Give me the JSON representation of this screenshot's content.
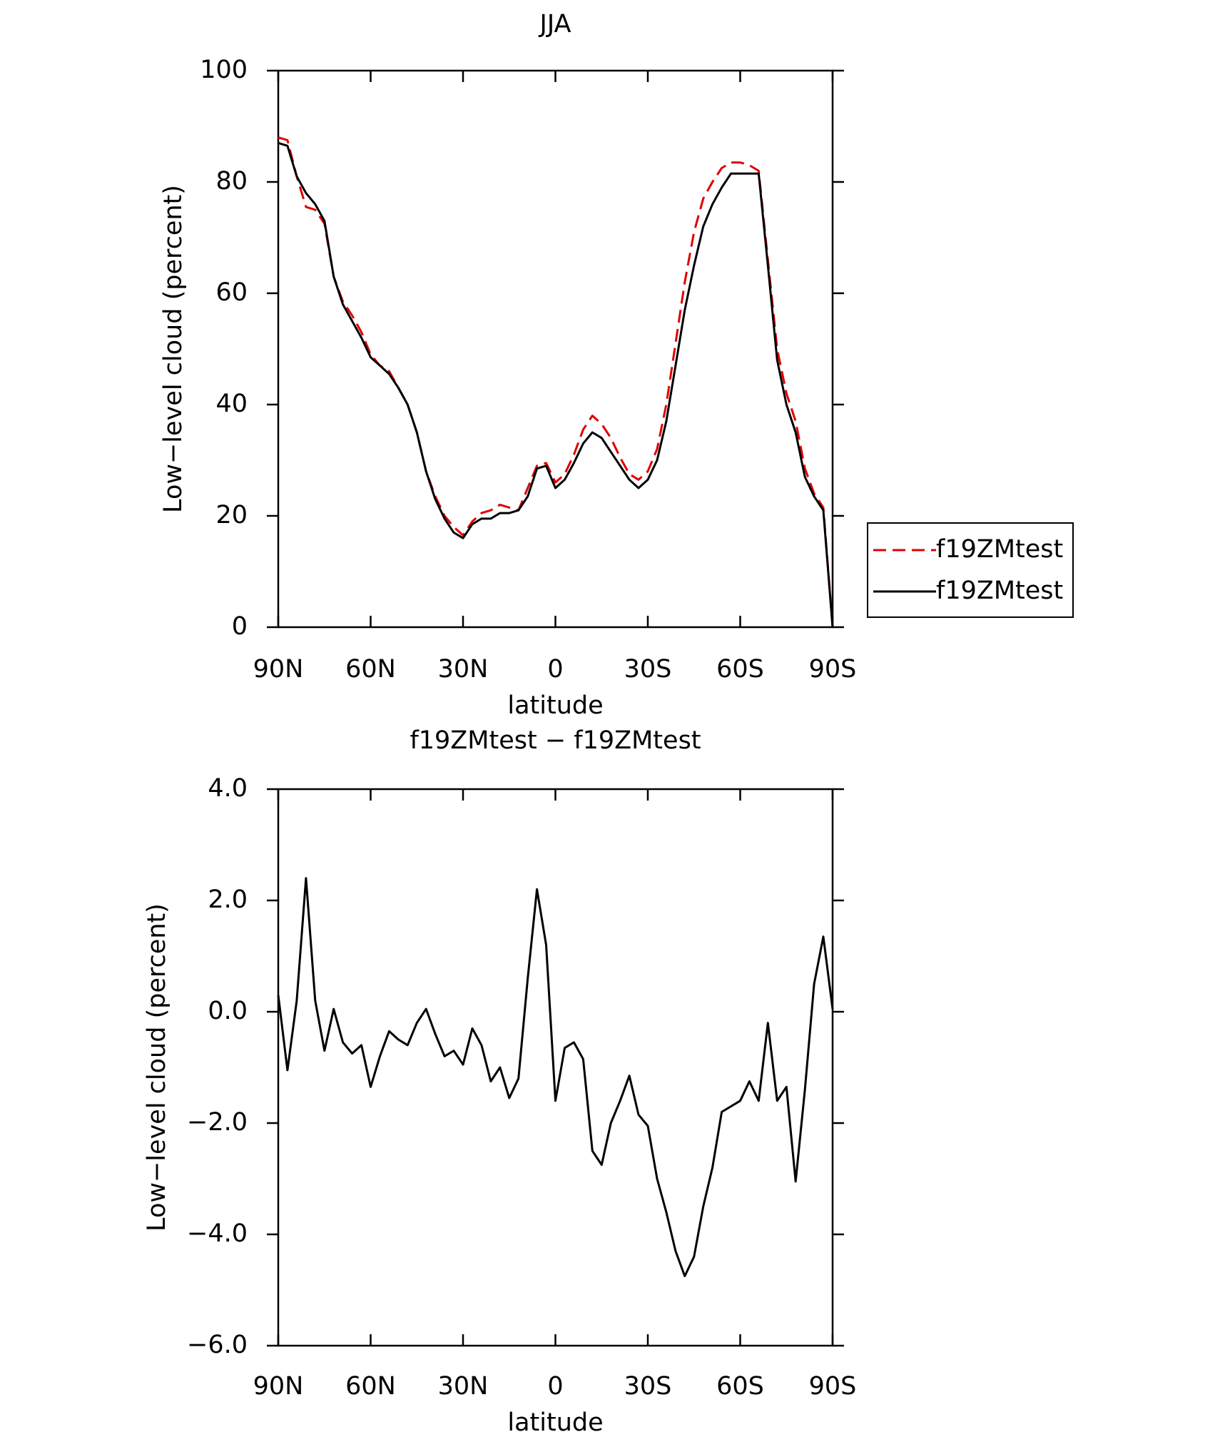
{
  "chart_data": [
    {
      "type": "line",
      "title": "JJA",
      "xlabel": "latitude",
      "ylabel": "Low−level cloud (percent)",
      "x": [
        90,
        87,
        84,
        81,
        78,
        75,
        72,
        69,
        66,
        63,
        60,
        57,
        54,
        51,
        48,
        45,
        42,
        39,
        36,
        33,
        30,
        27,
        24,
        21,
        18,
        15,
        12,
        9,
        6,
        3,
        0,
        -3,
        -6,
        -9,
        -12,
        -15,
        -18,
        -21,
        -24,
        -27,
        -30,
        -33,
        -36,
        -39,
        -42,
        -45,
        -48,
        -51,
        -54,
        -57,
        -60,
        -63,
        -66,
        -69,
        -72,
        -75,
        -78,
        -81,
        -84,
        -87,
        -90
      ],
      "series": [
        {
          "name": "f19ZMtest",
          "color": "#e00000",
          "dash": true,
          "values": [
            88,
            87.5,
            81,
            75.5,
            75,
            72.5,
            63,
            58.5,
            56,
            53,
            49,
            47,
            46,
            43,
            40,
            35,
            28,
            23.5,
            20,
            18,
            16.5,
            19,
            20.5,
            21,
            22,
            21.5,
            21,
            25,
            29,
            29.5,
            26,
            27.5,
            31,
            35.5,
            38,
            36.5,
            34,
            30.5,
            27.5,
            26.5,
            28,
            32,
            40,
            51,
            62,
            71,
            77,
            80,
            82.5,
            83.5,
            83.5,
            83,
            82,
            66,
            50,
            42,
            37,
            28.5,
            24,
            21.5,
            0
          ]
        },
        {
          "name": "f19ZMtest",
          "color": "#000000",
          "dash": false,
          "values": [
            87,
            86.5,
            81,
            78,
            76,
            73,
            63,
            58,
            55,
            52,
            48.5,
            47,
            45.5,
            43,
            40,
            35,
            28,
            23,
            19.5,
            17,
            16,
            18.5,
            19.5,
            19.5,
            20.5,
            20.5,
            21,
            23.5,
            28.5,
            29,
            25,
            26.5,
            29.5,
            33,
            35,
            34,
            31.5,
            29,
            26.5,
            25,
            26.5,
            30,
            37,
            47,
            57,
            65,
            72,
            76,
            79,
            81.5,
            81.5,
            81.5,
            81.5,
            65,
            48,
            40,
            35,
            27,
            23.5,
            21,
            0
          ]
        }
      ],
      "xlim": [
        90,
        -90
      ],
      "xticks": [
        {
          "value": 90,
          "label": "90N"
        },
        {
          "value": 60,
          "label": "60N"
        },
        {
          "value": 30,
          "label": "30N"
        },
        0,
        {
          "value": -30,
          "label": "30S"
        },
        {
          "value": -60,
          "label": "60S"
        },
        {
          "value": -90,
          "label": "90S"
        }
      ],
      "ylim": [
        0,
        100
      ],
      "yticks": [
        0,
        20,
        40,
        60,
        80,
        100
      ],
      "legend": "right"
    },
    {
      "type": "line",
      "title": "f19ZMtest − f19ZMtest",
      "xlabel": "latitude",
      "ylabel": "Low−level cloud (percent)",
      "x": [
        90,
        87,
        84,
        81,
        78,
        75,
        72,
        69,
        66,
        63,
        60,
        57,
        54,
        51,
        48,
        45,
        42,
        39,
        36,
        33,
        30,
        27,
        24,
        21,
        18,
        15,
        12,
        9,
        6,
        3,
        0,
        -3,
        -6,
        -9,
        -12,
        -15,
        -18,
        -21,
        -24,
        -27,
        -30,
        -33,
        -36,
        -39,
        -42,
        -45,
        -48,
        -51,
        -54,
        -57,
        -60,
        -63,
        -66,
        -69,
        -72,
        -75,
        -78,
        -81,
        -84,
        -87,
        -90
      ],
      "series": [
        {
          "color": "#000000",
          "dash": false,
          "values": [
            0.3,
            -1.05,
            0.2,
            2.4,
            0.2,
            -0.7,
            0.05,
            -0.55,
            -0.75,
            -0.6,
            -1.35,
            -0.8,
            -0.35,
            -0.5,
            -0.6,
            -0.2,
            0.05,
            -0.4,
            -0.8,
            -0.7,
            -0.95,
            -0.3,
            -0.6,
            -1.25,
            -1.0,
            -1.55,
            -1.2,
            0.6,
            2.2,
            1.2,
            -1.6,
            -0.65,
            -0.55,
            -0.85,
            -2.5,
            -2.75,
            -2.0,
            -1.6,
            -1.15,
            -1.85,
            -2.05,
            -3.0,
            -3.6,
            -4.3,
            -4.75,
            -4.4,
            -3.5,
            -2.8,
            -1.8,
            -1.7,
            -1.6,
            -1.25,
            -1.6,
            -0.2,
            -1.6,
            -1.35,
            -3.05,
            -1.4,
            0.5,
            1.35,
            0.05
          ]
        }
      ],
      "xlim": [
        90,
        -90
      ],
      "xticks": [
        {
          "value": 90,
          "label": "90N"
        },
        {
          "value": 60,
          "label": "60N"
        },
        {
          "value": 30,
          "label": "30N"
        },
        0,
        {
          "value": -30,
          "label": "30S"
        },
        {
          "value": -60,
          "label": "60S"
        },
        {
          "value": -90,
          "label": "90S"
        }
      ],
      "ylim": [
        -6,
        4
      ],
      "yticks": [
        {
          "value": -6,
          "label": "−6.0"
        },
        {
          "value": -4,
          "label": "−4.0"
        },
        {
          "value": -2,
          "label": "−2.0"
        },
        {
          "value": 0,
          "label": "0.0"
        },
        {
          "value": 2,
          "label": "2.0"
        },
        {
          "value": 4,
          "label": "4.0"
        }
      ]
    }
  ]
}
